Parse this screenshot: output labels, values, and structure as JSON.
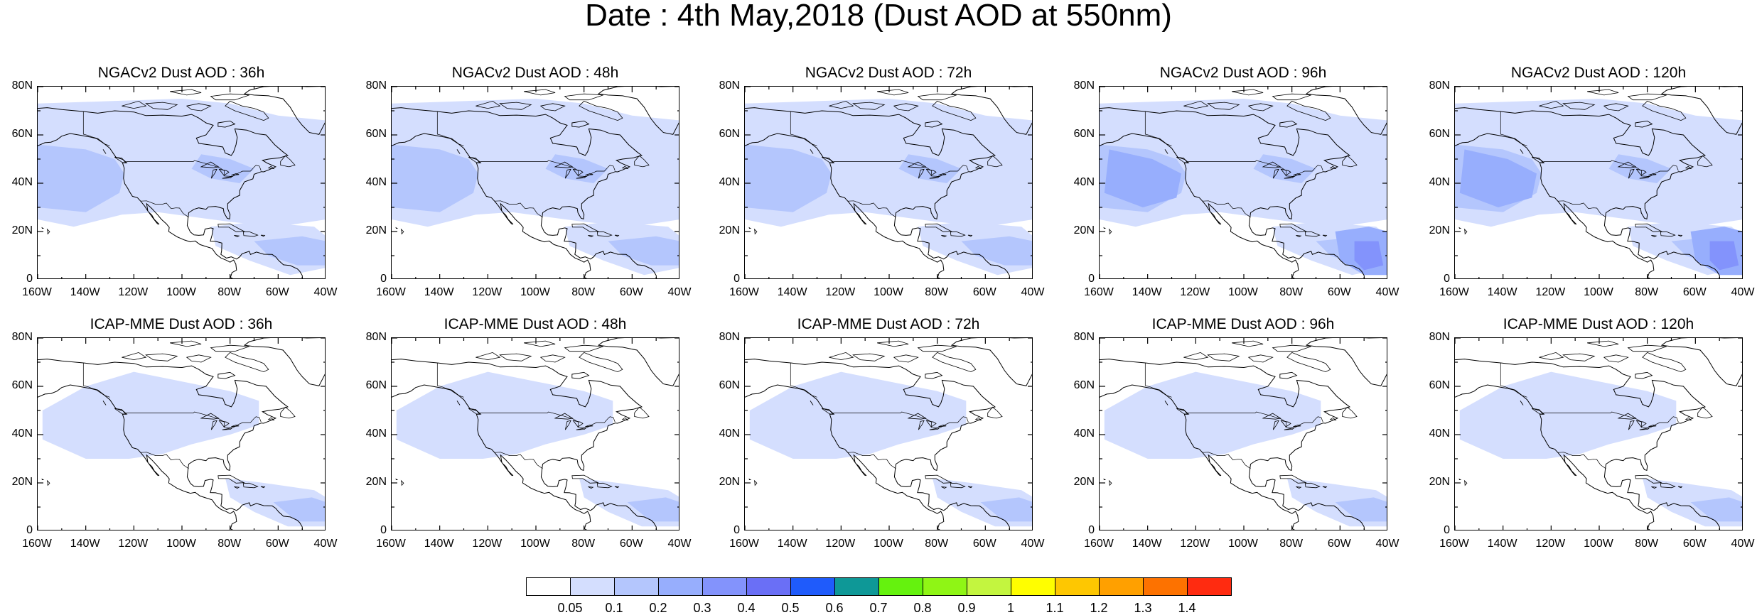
{
  "title": "Date : 4th May,2018 (Dust AOD at 550nm)",
  "panels": [
    {
      "title": "NGACv2 Dust AOD : 36h",
      "level": 2
    },
    {
      "title": "NGACv2 Dust AOD : 48h",
      "level": 2
    },
    {
      "title": "NGACv2 Dust AOD : 72h",
      "level": 2
    },
    {
      "title": "NGACv2 Dust AOD : 96h",
      "level": 3
    },
    {
      "title": "NGACv2 Dust AOD : 120h",
      "level": 3
    },
    {
      "title": "ICAP-MME Dust AOD : 36h",
      "level": 1
    },
    {
      "title": "ICAP-MME Dust AOD : 48h",
      "level": 1
    },
    {
      "title": "ICAP-MME Dust AOD : 72h",
      "level": 1
    },
    {
      "title": "ICAP-MME Dust AOD : 96h",
      "level": 1
    },
    {
      "title": "ICAP-MME Dust AOD : 120h",
      "level": 1
    }
  ],
  "lat_ticks": [
    "80N",
    "60N",
    "40N",
    "20N",
    "0"
  ],
  "lon_ticks": [
    "160W",
    "140W",
    "120W",
    "100W",
    "80W",
    "60W",
    "40W"
  ],
  "colorbar": {
    "labels": [
      "0.05",
      "0.1",
      "0.2",
      "0.3",
      "0.4",
      "0.5",
      "0.6",
      "0.7",
      "0.8",
      "0.9",
      "1",
      "1.1",
      "1.2",
      "1.3",
      "1.4"
    ],
    "colors": [
      "#ffffff",
      "#d4defe",
      "#b4c6fd",
      "#97aefd",
      "#8393fc",
      "#6a6ff6",
      "#1f5bfb",
      "#0e9897",
      "#65f20e",
      "#8ff515",
      "#c3f53f",
      "#fffe00",
      "#fec701",
      "#ffa000",
      "#fd7200",
      "#ff2b10"
    ]
  }
}
